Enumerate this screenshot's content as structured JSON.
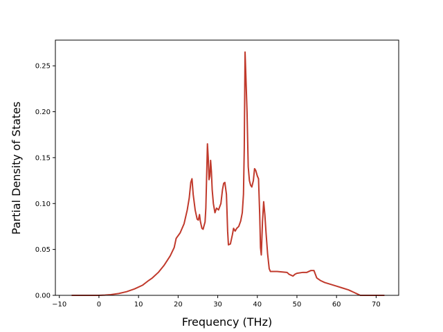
{
  "chart_data": {
    "type": "line",
    "title": "",
    "xlabel": "Frequency (THz)",
    "ylabel": "Partial Density of States",
    "xlim": [
      -11.0,
      75.7
    ],
    "ylim": [
      0.0,
      0.278
    ],
    "x_ticks": [
      -10,
      0,
      10,
      20,
      30,
      40,
      50,
      60,
      70
    ],
    "y_ticks": [
      0.0,
      0.05,
      0.1,
      0.15,
      0.2,
      0.25
    ],
    "x_tick_labels": [
      "−10",
      "0",
      "10",
      "20",
      "30",
      "40",
      "50",
      "60",
      "70"
    ],
    "y_tick_labels": [
      "0.00",
      "0.05",
      "0.10",
      "0.15",
      "0.20",
      "0.25"
    ],
    "grid": false,
    "legend": false,
    "series": [
      {
        "color": "#c0392b",
        "points": [
          [
            -6.8,
            0.0
          ],
          [
            -2.0,
            0.0
          ],
          [
            0.0,
            0.0
          ],
          [
            1.5,
            0.0003
          ],
          [
            3.0,
            0.0008
          ],
          [
            5.0,
            0.002
          ],
          [
            7.0,
            0.004
          ],
          [
            9.0,
            0.007
          ],
          [
            11.0,
            0.011
          ],
          [
            12.5,
            0.016
          ],
          [
            13.5,
            0.019
          ],
          [
            15.0,
            0.025
          ],
          [
            16.5,
            0.033
          ],
          [
            18.0,
            0.043
          ],
          [
            19.0,
            0.052
          ],
          [
            19.5,
            0.062
          ],
          [
            20.5,
            0.068
          ],
          [
            21.5,
            0.078
          ],
          [
            22.3,
            0.093
          ],
          [
            22.8,
            0.106
          ],
          [
            23.2,
            0.123
          ],
          [
            23.5,
            0.127
          ],
          [
            23.8,
            0.11
          ],
          [
            24.3,
            0.093
          ],
          [
            24.8,
            0.083
          ],
          [
            25.1,
            0.082
          ],
          [
            25.4,
            0.088
          ],
          [
            25.6,
            0.081
          ],
          [
            26.0,
            0.073
          ],
          [
            26.3,
            0.072
          ],
          [
            26.8,
            0.08
          ],
          [
            27.0,
            0.095
          ],
          [
            27.2,
            0.13
          ],
          [
            27.4,
            0.165
          ],
          [
            27.6,
            0.15
          ],
          [
            27.8,
            0.126
          ],
          [
            28.0,
            0.13
          ],
          [
            28.2,
            0.147
          ],
          [
            28.4,
            0.135
          ],
          [
            28.6,
            0.115
          ],
          [
            28.9,
            0.1
          ],
          [
            29.3,
            0.09
          ],
          [
            29.7,
            0.095
          ],
          [
            30.2,
            0.093
          ],
          [
            30.8,
            0.1
          ],
          [
            31.2,
            0.115
          ],
          [
            31.5,
            0.122
          ],
          [
            31.8,
            0.123
          ],
          [
            32.2,
            0.11
          ],
          [
            32.5,
            0.07
          ],
          [
            32.7,
            0.055
          ],
          [
            33.2,
            0.056
          ],
          [
            33.7,
            0.066
          ],
          [
            34.0,
            0.073
          ],
          [
            34.4,
            0.07
          ],
          [
            34.8,
            0.073
          ],
          [
            35.3,
            0.075
          ],
          [
            35.8,
            0.081
          ],
          [
            36.2,
            0.09
          ],
          [
            36.5,
            0.11
          ],
          [
            36.7,
            0.16
          ],
          [
            36.9,
            0.265
          ],
          [
            37.1,
            0.24
          ],
          [
            37.4,
            0.2
          ],
          [
            37.7,
            0.14
          ],
          [
            38.0,
            0.125
          ],
          [
            38.3,
            0.12
          ],
          [
            38.6,
            0.118
          ],
          [
            39.0,
            0.125
          ],
          [
            39.3,
            0.138
          ],
          [
            39.6,
            0.136
          ],
          [
            40.0,
            0.13
          ],
          [
            40.3,
            0.127
          ],
          [
            40.6,
            0.088
          ],
          [
            40.8,
            0.052
          ],
          [
            41.0,
            0.044
          ],
          [
            41.3,
            0.08
          ],
          [
            41.6,
            0.102
          ],
          [
            41.9,
            0.088
          ],
          [
            42.2,
            0.068
          ],
          [
            42.6,
            0.045
          ],
          [
            43.0,
            0.029
          ],
          [
            43.3,
            0.026
          ],
          [
            45.0,
            0.026
          ],
          [
            47.5,
            0.025
          ],
          [
            48.0,
            0.023
          ],
          [
            48.5,
            0.022
          ],
          [
            49.0,
            0.021
          ],
          [
            49.5,
            0.023
          ],
          [
            50.0,
            0.024
          ],
          [
            51.5,
            0.025
          ],
          [
            52.5,
            0.025
          ],
          [
            53.5,
            0.027
          ],
          [
            54.3,
            0.027
          ],
          [
            55.0,
            0.019
          ],
          [
            56.0,
            0.016
          ],
          [
            57.0,
            0.014
          ],
          [
            58.5,
            0.012
          ],
          [
            60.0,
            0.01
          ],
          [
            61.5,
            0.008
          ],
          [
            63.0,
            0.006
          ],
          [
            64.5,
            0.003
          ],
          [
            65.5,
            0.001
          ],
          [
            66.0,
            0.0
          ],
          [
            72.0,
            0.0
          ]
        ]
      }
    ]
  }
}
